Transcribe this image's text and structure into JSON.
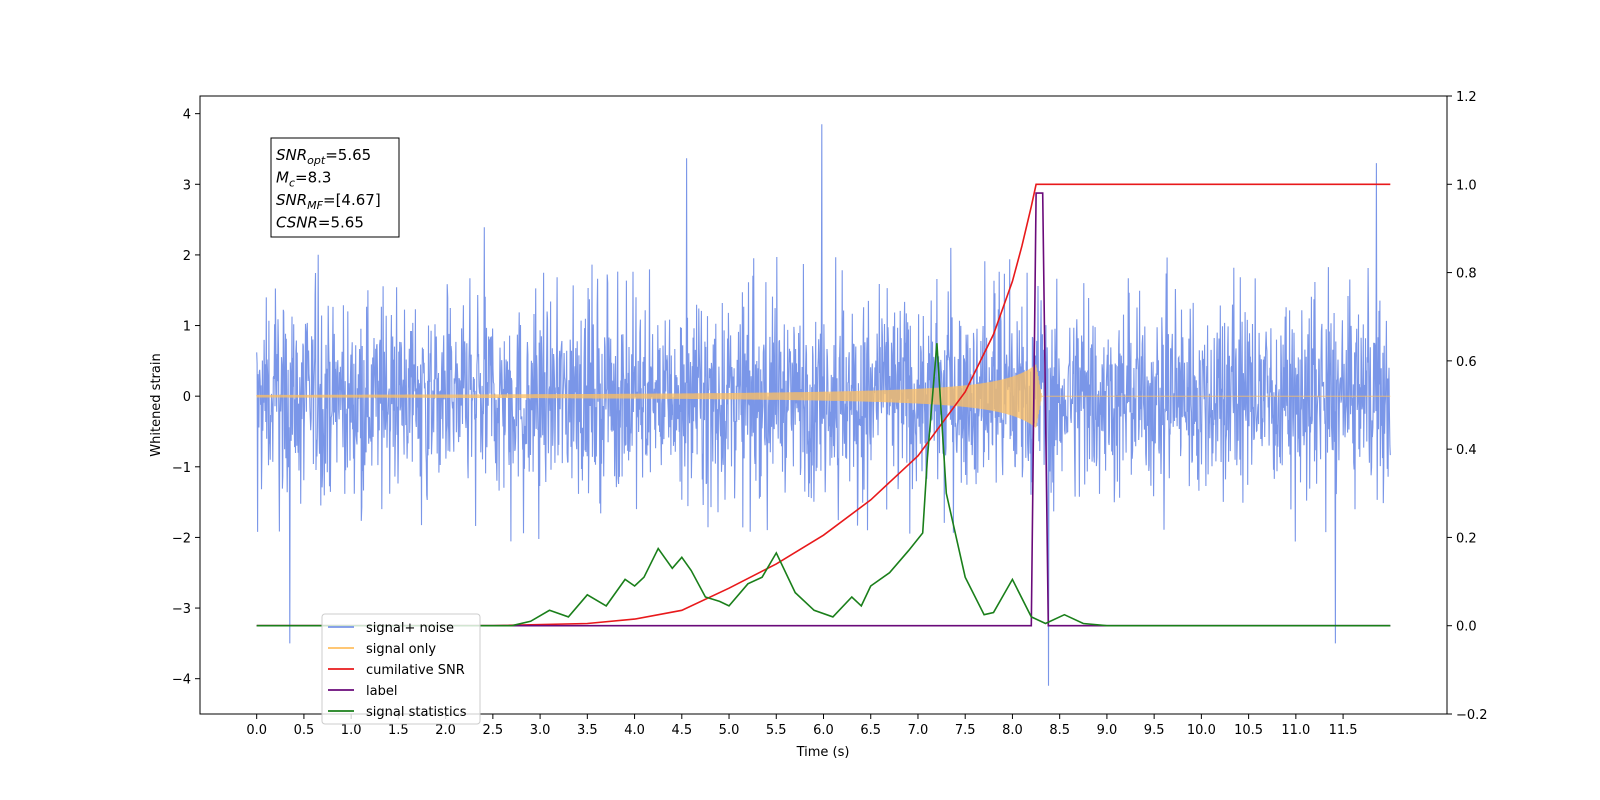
{
  "chart_data": {
    "type": "line",
    "title": "",
    "xlabel": "Time (s)",
    "ylabel": "Whitened strain",
    "y2label": "",
    "xlim": [
      -0.6,
      12.6
    ],
    "ylim": [
      -4.5,
      4.25
    ],
    "y2lim": [
      -0.2,
      1.2
    ],
    "x_ticks": [
      "0.0",
      "0.5",
      "1.0",
      "1.5",
      "2.0",
      "2.5",
      "3.0",
      "3.5",
      "4.0",
      "4.5",
      "5.0",
      "5.5",
      "6.0",
      "6.5",
      "7.0",
      "7.5",
      "8.0",
      "8.5",
      "9.0",
      "9.5",
      "10.0",
      "10.5",
      "11.0",
      "11.5"
    ],
    "y_ticks": [
      "−4",
      "−3",
      "−2",
      "−1",
      "0",
      "1",
      "2",
      "3",
      "4"
    ],
    "y2_ticks": [
      "−0.2",
      "0.0",
      "0.2",
      "0.4",
      "0.6",
      "0.8",
      "1.0",
      "1.2"
    ],
    "grid": false,
    "legend_position": "bottom-left",
    "annotation": {
      "lines": [
        {
          "base": "SNR",
          "sub": "opt",
          "rest": "=5.65"
        },
        {
          "base": "M",
          "sub": "c",
          "rest": "=8.3"
        },
        {
          "base": "SNR",
          "sub": "MF",
          "rest": "=[4.67]"
        },
        {
          "base": "CSNR",
          "sub": "",
          "rest": "=5.65"
        }
      ]
    },
    "series": [
      {
        "name": "signal+ noise",
        "color": "#7a96e8",
        "axis": "left",
        "style": "noise",
        "x_range": [
          0.0,
          12.0
        ],
        "typical_envelope": [
          -2.1,
          2.1
        ],
        "extreme_range": [
          -4.1,
          3.85
        ],
        "peaks": [
          [
            5.98,
            3.85
          ],
          [
            8.38,
            -4.1
          ],
          [
            0.35,
            -3.5
          ],
          [
            11.42,
            -3.5
          ],
          [
            4.55,
            3.37
          ],
          [
            11.85,
            3.3
          ]
        ]
      },
      {
        "name": "signal only",
        "color": "#ffbf60",
        "axis": "left",
        "style": "chirp",
        "x_range": [
          0.0,
          12.0
        ],
        "merger_time": 8.25,
        "peak_amplitude": 0.45
      },
      {
        "name": "cumilative SNR",
        "color": "#e8191b",
        "axis": "right",
        "x": [
          0.0,
          2.5,
          3.5,
          4.0,
          4.5,
          5.0,
          5.5,
          6.0,
          6.5,
          7.0,
          7.5,
          7.8,
          8.0,
          8.1,
          8.2,
          8.25,
          8.3,
          12.0
        ],
        "values": [
          0.0,
          0.0,
          0.005,
          0.015,
          0.035,
          0.085,
          0.14,
          0.205,
          0.285,
          0.385,
          0.53,
          0.66,
          0.78,
          0.86,
          0.95,
          1.0,
          1.0,
          1.0
        ]
      },
      {
        "name": "label",
        "color": "#6a0a7a",
        "axis": "right",
        "x": [
          0.0,
          8.2,
          8.25,
          8.32,
          8.38,
          12.0
        ],
        "values": [
          0.0,
          0.0,
          0.98,
          0.98,
          0.0,
          0.0
        ]
      },
      {
        "name": "signal statistics",
        "color": "#1a7f1a",
        "axis": "right",
        "x": [
          0.0,
          2.7,
          2.9,
          3.1,
          3.3,
          3.5,
          3.7,
          3.9,
          4.0,
          4.1,
          4.25,
          4.4,
          4.5,
          4.6,
          4.75,
          4.9,
          5.0,
          5.2,
          5.35,
          5.5,
          5.7,
          5.9,
          6.1,
          6.3,
          6.4,
          6.5,
          6.7,
          6.9,
          7.05,
          7.1,
          7.2,
          7.3,
          7.5,
          7.7,
          7.8,
          8.0,
          8.2,
          8.35,
          8.55,
          8.75,
          9.0,
          12.0
        ],
        "values": [
          0.0,
          0.0,
          0.01,
          0.035,
          0.02,
          0.07,
          0.045,
          0.105,
          0.09,
          0.11,
          0.175,
          0.13,
          0.155,
          0.125,
          0.065,
          0.055,
          0.045,
          0.095,
          0.11,
          0.165,
          0.075,
          0.035,
          0.02,
          0.065,
          0.045,
          0.09,
          0.12,
          0.17,
          0.21,
          0.38,
          0.64,
          0.3,
          0.11,
          0.025,
          0.03,
          0.105,
          0.02,
          0.005,
          0.025,
          0.005,
          0.0,
          0.0
        ]
      }
    ]
  }
}
